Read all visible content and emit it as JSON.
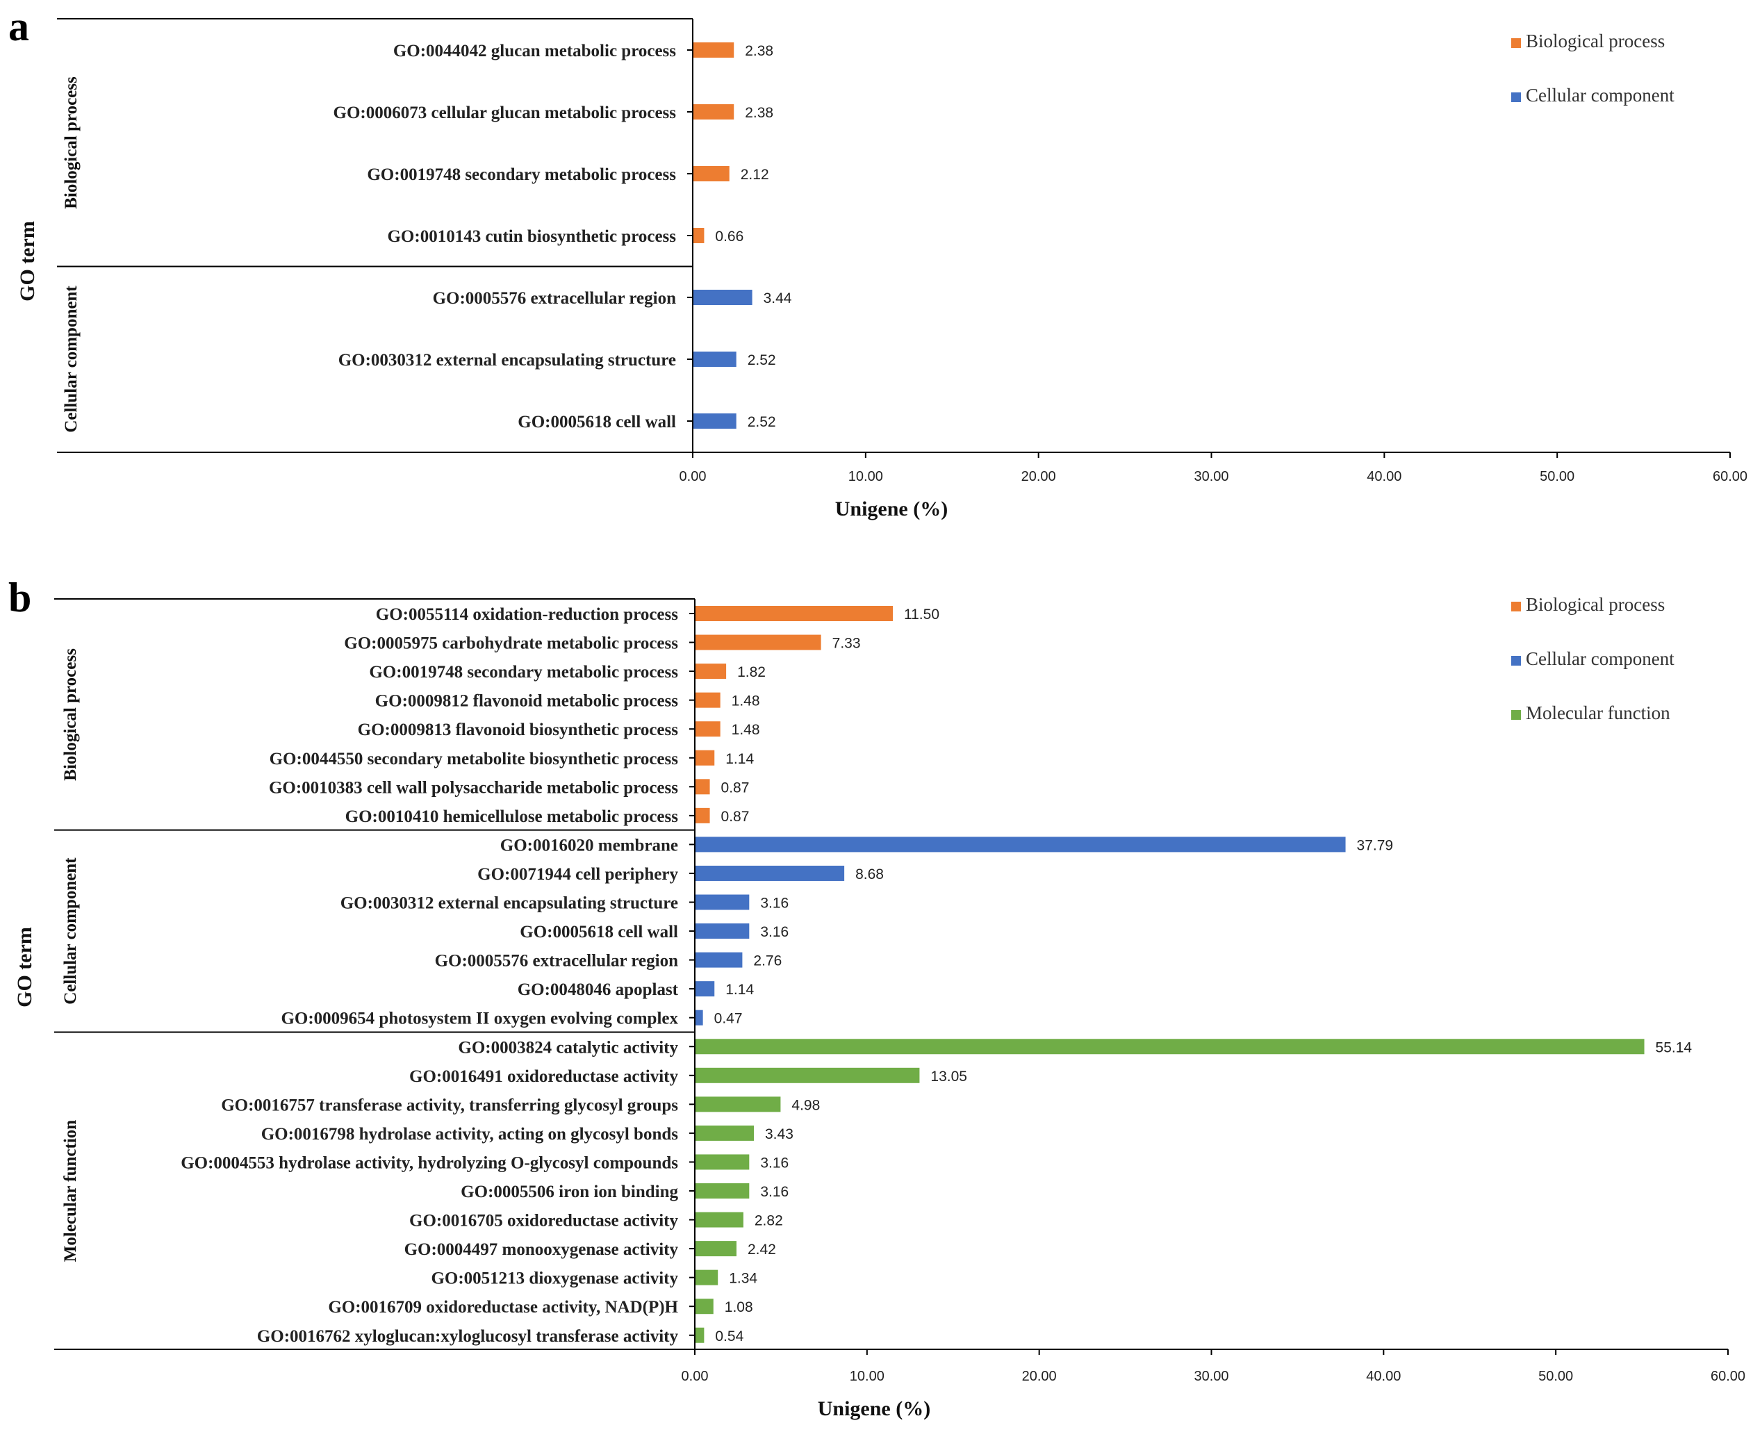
{
  "colors": {
    "Biological process": "#ED7D31",
    "Cellular component": "#4472C4",
    "Molecular function": "#70AD47"
  },
  "chart_data": [
    {
      "panel": "a",
      "type": "bar",
      "orientation": "horizontal",
      "xlabel": "Unigene (%)",
      "ylabel": "GO term",
      "xlim": [
        0,
        60
      ],
      "xticks": [
        "0.00",
        "10.00",
        "20.00",
        "30.00",
        "40.00",
        "50.00",
        "60.00"
      ],
      "legend": [
        "Biological process",
        "Cellular component"
      ],
      "legend_position": "top-right",
      "groups": [
        {
          "name": "Biological process",
          "items": [
            {
              "label": "GO:0044042 glucan metabolic process",
              "value": 2.38,
              "value_label": "2.38"
            },
            {
              "label": "GO:0006073 cellular glucan metabolic process",
              "value": 2.38,
              "value_label": "2.38"
            },
            {
              "label": "GO:0019748 secondary metabolic process",
              "value": 2.12,
              "value_label": "2.12"
            },
            {
              "label": "GO:0010143 cutin biosynthetic process",
              "value": 0.66,
              "value_label": "0.66"
            }
          ]
        },
        {
          "name": "Cellular component",
          "items": [
            {
              "label": "GO:0005576 extracellular region",
              "value": 3.44,
              "value_label": "3.44"
            },
            {
              "label": "GO:0030312 external encapsulating structure",
              "value": 2.52,
              "value_label": "2.52"
            },
            {
              "label": "GO:0005618 cell wall",
              "value": 2.52,
              "value_label": "2.52"
            }
          ]
        }
      ]
    },
    {
      "panel": "b",
      "type": "bar",
      "orientation": "horizontal",
      "xlabel": "Unigene (%)",
      "ylabel": "GO term",
      "xlim": [
        0,
        60
      ],
      "xticks": [
        "0.00",
        "10.00",
        "20.00",
        "30.00",
        "40.00",
        "50.00",
        "60.00"
      ],
      "legend": [
        "Biological process",
        "Cellular component",
        "Molecular function"
      ],
      "legend_position": "top-right",
      "groups": [
        {
          "name": "Biological process",
          "items": [
            {
              "label": "GO:0055114 oxidation-reduction process",
              "value": 11.5,
              "value_label": "11.50"
            },
            {
              "label": "GO:0005975 carbohydrate metabolic process",
              "value": 7.33,
              "value_label": "7.33"
            },
            {
              "label": "GO:0019748 secondary metabolic process",
              "value": 1.82,
              "value_label": "1.82"
            },
            {
              "label": "GO:0009812 flavonoid metabolic process",
              "value": 1.48,
              "value_label": "1.48"
            },
            {
              "label": "GO:0009813 flavonoid biosynthetic process",
              "value": 1.48,
              "value_label": "1.48"
            },
            {
              "label": "GO:0044550 secondary metabolite biosynthetic process",
              "value": 1.14,
              "value_label": "1.14"
            },
            {
              "label": "GO:0010383 cell wall polysaccharide metabolic process",
              "value": 0.87,
              "value_label": "0.87"
            },
            {
              "label": "GO:0010410 hemicellulose metabolic process",
              "value": 0.87,
              "value_label": "0.87"
            }
          ]
        },
        {
          "name": "Cellular component",
          "items": [
            {
              "label": "GO:0016020 membrane",
              "value": 37.79,
              "value_label": "37.79"
            },
            {
              "label": "GO:0071944 cell periphery",
              "value": 8.68,
              "value_label": "8.68"
            },
            {
              "label": "GO:0030312 external encapsulating structure",
              "value": 3.16,
              "value_label": "3.16"
            },
            {
              "label": "GO:0005618 cell wall",
              "value": 3.16,
              "value_label": "3.16"
            },
            {
              "label": "GO:0005576 extracellular region",
              "value": 2.76,
              "value_label": "2.76"
            },
            {
              "label": "GO:0048046 apoplast",
              "value": 1.14,
              "value_label": "1.14"
            },
            {
              "label": "GO:0009654 photosystem II oxygen evolving complex",
              "value": 0.47,
              "value_label": "0.47"
            }
          ]
        },
        {
          "name": "Molecular function",
          "items": [
            {
              "label": "GO:0003824 catalytic activity",
              "value": 55.14,
              "value_label": "55.14"
            },
            {
              "label": "GO:0016491 oxidoreductase activity",
              "value": 13.05,
              "value_label": "13.05"
            },
            {
              "label": "GO:0016757 transferase activity, transferring glycosyl groups",
              "value": 4.98,
              "value_label": "4.98"
            },
            {
              "label": "GO:0016798 hydrolase activity, acting on glycosyl bonds",
              "value": 3.43,
              "value_label": "3.43"
            },
            {
              "label": "GO:0004553 hydrolase activity, hydrolyzing O-glycosyl compounds",
              "value": 3.16,
              "value_label": "3.16"
            },
            {
              "label": "GO:0005506 iron ion binding",
              "value": 3.16,
              "value_label": "3.16"
            },
            {
              "label": "GO:0016705 oxidoreductase activity",
              "value": 2.82,
              "value_label": "2.82"
            },
            {
              "label": "GO:0004497 monooxygenase activity",
              "value": 2.42,
              "value_label": "2.42"
            },
            {
              "label": "GO:0051213 dioxygenase activity",
              "value": 1.34,
              "value_label": "1.34"
            },
            {
              "label": "GO:0016709 oxidoreductase activity, NAD(P)H",
              "value": 1.08,
              "value_label": "1.08"
            },
            {
              "label": "GO:0016762 xyloglucan:xyloglucosyl transferase activity",
              "value": 0.54,
              "value_label": "0.54"
            }
          ]
        }
      ]
    }
  ]
}
